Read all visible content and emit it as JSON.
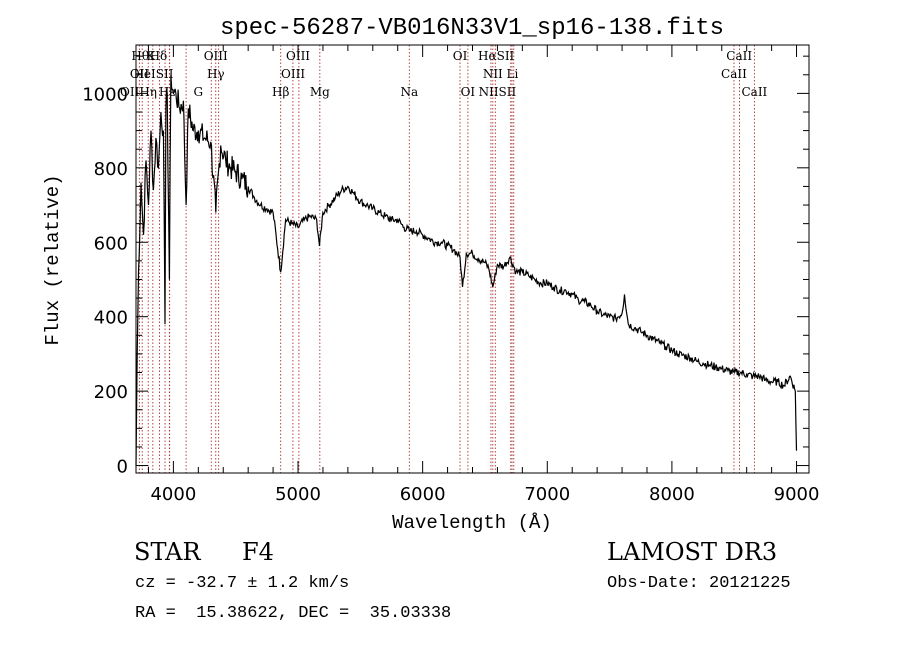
{
  "chart_data": {
    "type": "line",
    "title": "spec-56287-VB016N33V1_sp16-138.fits",
    "xlabel": "Wavelength (Å)",
    "ylabel": "Flux (relative)",
    "xlim": [
      3700,
      9100
    ],
    "ylim": [
      -20,
      1130
    ],
    "xticks": [
      4000,
      5000,
      6000,
      7000,
      8000,
      9000
    ],
    "yticks": [
      0,
      200,
      400,
      600,
      800,
      1000
    ],
    "series": [
      {
        "name": "spectrum",
        "x": [
          3700,
          3710,
          3720,
          3740,
          3760,
          3780,
          3800,
          3820,
          3840,
          3860,
          3880,
          3900,
          3920,
          3933,
          3940,
          3950,
          3968,
          3980,
          4000,
          4020,
          4050,
          4080,
          4102,
          4120,
          4160,
          4200,
          4250,
          4300,
          4340,
          4380,
          4420,
          4460,
          4500,
          4550,
          4600,
          4650,
          4700,
          4750,
          4800,
          4861,
          4900,
          4950,
          5000,
          5050,
          5100,
          5150,
          5172,
          5200,
          5250,
          5300,
          5350,
          5400,
          5450,
          5500,
          5550,
          5600,
          5650,
          5700,
          5750,
          5800,
          5850,
          5900,
          5950,
          6000,
          6050,
          6100,
          6150,
          6200,
          6250,
          6300,
          6320,
          6350,
          6400,
          6450,
          6500,
          6530,
          6563,
          6600,
          6650,
          6700,
          6750,
          6800,
          6850,
          6900,
          6950,
          7000,
          7050,
          7100,
          7150,
          7200,
          7250,
          7300,
          7350,
          7400,
          7450,
          7500,
          7550,
          7600,
          7620,
          7650,
          7700,
          7750,
          7800,
          7850,
          7900,
          7950,
          8000,
          8050,
          8100,
          8150,
          8200,
          8250,
          8300,
          8350,
          8400,
          8450,
          8500,
          8550,
          8600,
          8650,
          8700,
          8750,
          8800,
          8850,
          8900,
          8950,
          8990,
          9000
        ],
        "values": [
          0,
          300,
          520,
          760,
          620,
          820,
          700,
          900,
          740,
          880,
          800,
          950,
          900,
          380,
          960,
          1000,
          500,
          1050,
          1000,
          1000,
          960,
          980,
          700,
          960,
          900,
          900,
          880,
          870,
          680,
          860,
          820,
          800,
          790,
          770,
          750,
          720,
          700,
          690,
          680,
          520,
          660,
          650,
          640,
          660,
          670,
          660,
          590,
          680,
          700,
          720,
          740,
          750,
          730,
          710,
          700,
          690,
          680,
          670,
          660,
          660,
          640,
          630,
          630,
          620,
          610,
          600,
          600,
          590,
          580,
          560,
          480,
          570,
          570,
          555,
          545,
          530,
          480,
          540,
          535,
          560,
          520,
          520,
          510,
          500,
          490,
          490,
          480,
          470,
          470,
          460,
          445,
          440,
          430,
          415,
          405,
          400,
          395,
          410,
          460,
          380,
          370,
          360,
          350,
          340,
          330,
          320,
          310,
          300,
          295,
          290,
          280,
          275,
          270,
          265,
          260,
          255,
          250,
          250,
          245,
          240,
          240,
          230,
          225,
          225,
          215,
          240,
          200,
          40
        ]
      }
    ],
    "line_labels": {
      "row1": [
        {
          "wave": 3734,
          "text": "Hθ"
        },
        {
          "wave": 3820,
          "text": "K"
        },
        {
          "wave": 3880,
          "text": "Hδ"
        },
        {
          "wave": 4340,
          "text": "OIII"
        },
        {
          "wave": 5000,
          "text": "OIII"
        },
        {
          "wave": 6300,
          "text": "OI"
        },
        {
          "wave": 6590,
          "text": "HαSII"
        },
        {
          "wave": 8540,
          "text": "CaII"
        }
      ],
      "row2": [
        {
          "wave": 3728,
          "text": "OII"
        },
        {
          "wave": 3840,
          "text": "HeISII"
        },
        {
          "wave": 4340,
          "text": "Hγ"
        },
        {
          "wave": 4960,
          "text": "OIII"
        },
        {
          "wave": 6563,
          "text": "NII"
        },
        {
          "wave": 6720,
          "text": "Li"
        },
        {
          "wave": 8498,
          "text": "CaII"
        }
      ],
      "row3": [
        {
          "wave": 3720,
          "text": "OIIHη"
        },
        {
          "wave": 3950,
          "text": "Hε"
        },
        {
          "wave": 4200,
          "text": "G"
        },
        {
          "wave": 4861,
          "text": "Hβ"
        },
        {
          "wave": 5175,
          "text": "Mg"
        },
        {
          "wave": 5893,
          "text": "Na"
        },
        {
          "wave": 6363,
          "text": "OI"
        },
        {
          "wave": 6600,
          "text": "NIISII"
        },
        {
          "wave": 8662,
          "text": "CaII"
        }
      ]
    },
    "line_markers": [
      3727,
      3750,
      3798,
      3835,
      3889,
      3933,
      3968,
      3970,
      4102,
      4304,
      4340,
      4363,
      4861,
      4959,
      5007,
      5175,
      5893,
      6300,
      6363,
      6548,
      6563,
      6583,
      6707,
      6717,
      6731,
      8498,
      8542,
      8662
    ]
  },
  "info": {
    "object_class": "STAR",
    "subclass": "F4",
    "survey": "LAMOST DR3",
    "redshift": "cz = -32.7 ± 1.2 km/s",
    "obs_date": "Obs-Date: 20121225",
    "coords": "RA =  15.38622, DEC =  35.03338"
  }
}
